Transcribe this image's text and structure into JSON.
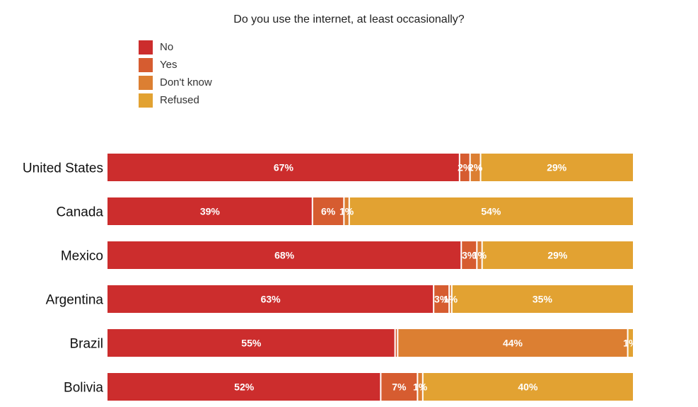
{
  "chart_data": {
    "type": "bar",
    "orientation": "horizontal",
    "stacked": true,
    "title": "Do you use the internet, at least occasionally?",
    "categories": [
      "United States",
      "Canada",
      "Mexico",
      "Argentina",
      "Brazil",
      "Bolivia"
    ],
    "series": [
      {
        "name": "No",
        "color": "#cc2d2d",
        "values": [
          67,
          39,
          68,
          63,
          55,
          52
        ],
        "labels": [
          "67%",
          "39%",
          "68%",
          "63%",
          "55%",
          "52%"
        ]
      },
      {
        "name": "Yes",
        "color": "#d65c30",
        "values": [
          2,
          6,
          3,
          3,
          0.5,
          7
        ],
        "labels": [
          "2%",
          "6%",
          "3%",
          "3%",
          "",
          "7%"
        ]
      },
      {
        "name": "Don't know",
        "color": "#dc7f32",
        "values": [
          2,
          1,
          1,
          0.5,
          44,
          1
        ],
        "labels": [
          "2%",
          "1%",
          "1%",
          "1%",
          "44%",
          "1%"
        ]
      },
      {
        "name": "Refused",
        "color": "#e2a232",
        "values": [
          29,
          54,
          29,
          35,
          1,
          40
        ],
        "labels": [
          "29%",
          "54%",
          "29%",
          "35%",
          "1%",
          "40%"
        ]
      }
    ],
    "xlim": [
      0,
      100
    ],
    "legend": "top-left",
    "grid": false
  }
}
